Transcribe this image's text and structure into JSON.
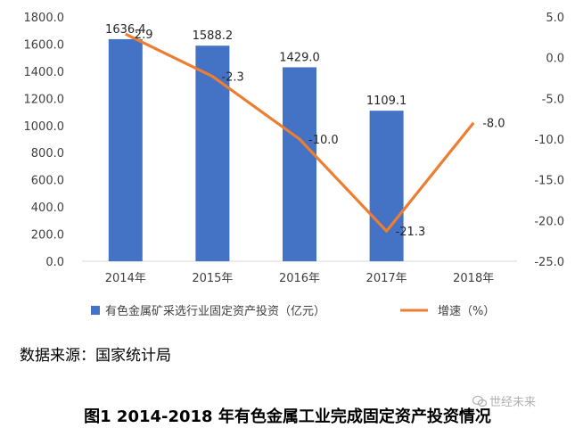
{
  "chart_data": {
    "type": "bar",
    "categories": [
      "2014年",
      "2015年",
      "2016年",
      "2017年",
      "2018年"
    ],
    "series": [
      {
        "name": "有色金属矿采选行业固定资产投资（亿元）",
        "type": "bar",
        "axis": "left",
        "values": [
          1636.4,
          1588.2,
          1429.0,
          1109.1,
          null
        ],
        "labels": [
          "1636.4",
          "1588.2",
          "1429.0",
          "1109.1",
          ""
        ],
        "color": "#4472C4"
      },
      {
        "name": "增速（%）",
        "type": "line",
        "axis": "right",
        "values": [
          2.9,
          -2.3,
          -10.0,
          -21.3,
          -8.0
        ],
        "labels": [
          "2.9",
          "-2.3",
          "-10.0",
          "-21.3",
          "-8.0"
        ],
        "color": "#ED7D31"
      }
    ],
    "y_left": {
      "range": [
        0,
        1800
      ],
      "ticks": [
        0,
        200,
        400,
        600,
        800,
        1000,
        1200,
        1400,
        1600,
        1800
      ],
      "tick_labels": [
        "0.0",
        "200.0",
        "400.0",
        "600.0",
        "800.0",
        "1000.0",
        "1200.0",
        "1400.0",
        "1600.0",
        "1800.0"
      ]
    },
    "y_right": {
      "range": [
        -25,
        5
      ],
      "ticks": [
        5,
        0,
        -5,
        -10,
        -15,
        -20,
        -25
      ],
      "tick_labels": [
        "5.0",
        "0.0",
        "-5.0",
        "-10.0",
        "-15.0",
        "-20.0",
        "-25.0"
      ]
    },
    "grid": false,
    "legend": "bottom"
  },
  "source_text": "数据来源：国家统计局",
  "caption": "图1 2014-2018 年有色金属工业完成固定资产投资情况",
  "watermark": "世经未来",
  "watermark_icon": "speech-bubble-icon"
}
